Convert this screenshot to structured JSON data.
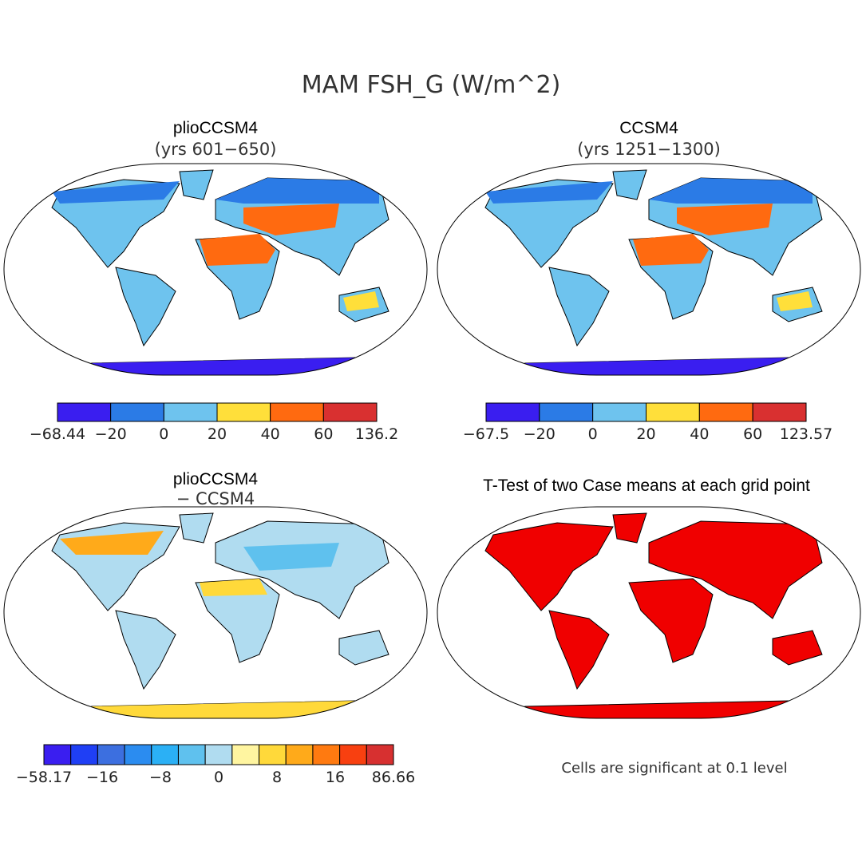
{
  "title": "MAM FSH_G (W/m^2)",
  "panels": [
    {
      "title": "plioCCSM4",
      "subtitle": "(yrs 601−650)",
      "colorbar": {
        "labels": [
          "−68.44",
          "−20",
          "0",
          "20",
          "40",
          "60",
          "136.2"
        ],
        "colors": [
          "#3a1ef0",
          "#2b7be6",
          "#6ec3ee",
          "#ffdf3a",
          "#ff6a10",
          "#d93030"
        ]
      }
    },
    {
      "title": "CCSM4",
      "subtitle": "(yrs 1251−1300)",
      "colorbar": {
        "labels": [
          "−67.5",
          "−20",
          "0",
          "20",
          "40",
          "60",
          "123.57"
        ],
        "colors": [
          "#3a1ef0",
          "#2b7be6",
          "#6ec3ee",
          "#ffdf3a",
          "#ff6a10",
          "#d93030"
        ]
      }
    },
    {
      "title": "plioCCSM4",
      "subtitle": "− CCSM4",
      "colorbar": {
        "labels": [
          "−58.17",
          "−16",
          "−8",
          "0",
          "8",
          "16",
          "86.66"
        ],
        "colors": [
          "#3a1ef0",
          "#1f3ff5",
          "#3c6fe0",
          "#2b8cf0",
          "#2bb0f5",
          "#5fc1ee",
          "#b0dcf0",
          "#fff5a0",
          "#ffd93a",
          "#ffaa1a",
          "#ff7a10",
          "#f84010",
          "#d73030"
        ]
      }
    },
    {
      "title": "T-Test of two Case means at each grid point"
    }
  ],
  "note": "Cells are significant at 0.1 level"
}
